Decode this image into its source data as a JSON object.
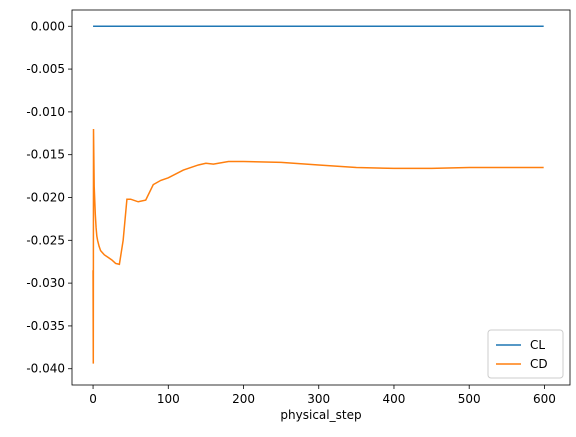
{
  "chart_data": {
    "type": "line",
    "x_label": "physical_step",
    "x": [
      0,
      0.3,
      0.6,
      1.5,
      3,
      4,
      5,
      6,
      8,
      10,
      15,
      20,
      25,
      30,
      35,
      40,
      45,
      50,
      60,
      70,
      80,
      90,
      100,
      120,
      140,
      150,
      160,
      180,
      200,
      250,
      300,
      350,
      400,
      450,
      500,
      550,
      599
    ],
    "series": [
      {
        "name": "CL",
        "color": "#1f77b4",
        "values": [
          0,
          0,
          0,
          0,
          0,
          0,
          0,
          0,
          0,
          0,
          0,
          0,
          0,
          0,
          0,
          0,
          0,
          0,
          0,
          0,
          0,
          0,
          0,
          0,
          0,
          0,
          0,
          0,
          0,
          0,
          0,
          0,
          0,
          0,
          0,
          0,
          0
        ]
      },
      {
        "name": "CD",
        "color": "#ff7f0e",
        "values": [
          -0.0285,
          -0.0394,
          -0.012,
          -0.0187,
          -0.022,
          -0.0235,
          -0.0245,
          -0.025,
          -0.0257,
          -0.0262,
          -0.0267,
          -0.027,
          -0.0273,
          -0.0277,
          -0.0278,
          -0.025,
          -0.0202,
          -0.0202,
          -0.0205,
          -0.0203,
          -0.0185,
          -0.018,
          -0.0177,
          -0.0168,
          -0.0162,
          -0.016,
          -0.0161,
          -0.0158,
          -0.0158,
          -0.0159,
          -0.0162,
          -0.0165,
          -0.0166,
          -0.0166,
          -0.0165,
          -0.0165,
          -0.0165
        ]
      }
    ],
    "xlim": [
      -28,
      634
    ],
    "ylim": [
      -0.0419,
      0.0019
    ],
    "xticks": [
      0,
      100,
      200,
      300,
      400,
      500,
      600
    ],
    "yticks": [
      {
        "value": 0,
        "label": "0.000"
      },
      {
        "value": -0.005,
        "label": "-0.005"
      },
      {
        "value": -0.01,
        "label": "-0.010"
      },
      {
        "value": -0.015,
        "label": "-0.015"
      },
      {
        "value": -0.02,
        "label": "-0.020"
      },
      {
        "value": -0.025,
        "label": "-0.025"
      },
      {
        "value": -0.03,
        "label": "-0.030"
      },
      {
        "value": -0.035,
        "label": "-0.035"
      },
      {
        "value": -0.04,
        "label": "-0.040"
      }
    ],
    "legend": "lower right"
  }
}
